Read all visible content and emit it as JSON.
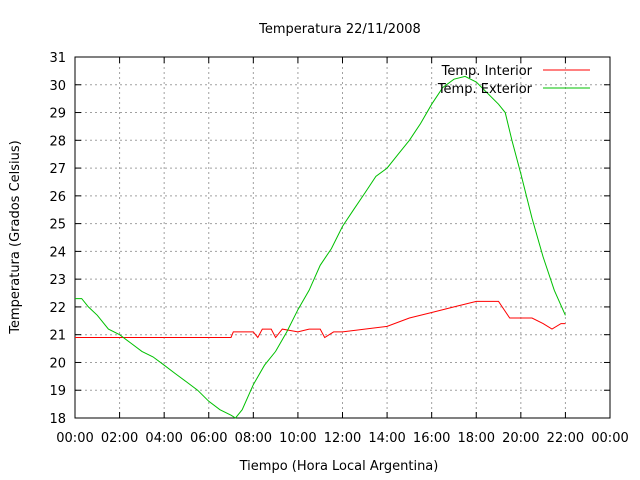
{
  "chart_data": {
    "type": "line",
    "title": "Temperatura 22/11/2008",
    "xlabel": "Tiempo (Hora Local Argentina)",
    "ylabel": "Temperatura (Grados Celsius)",
    "xlim": [
      0,
      24
    ],
    "ylim": [
      18,
      31
    ],
    "x_unit": "hours",
    "xticks": [
      "00:00",
      "02:00",
      "04:00",
      "06:00",
      "08:00",
      "10:00",
      "12:00",
      "14:00",
      "16:00",
      "18:00",
      "20:00",
      "22:00",
      "00:00"
    ],
    "yticks": [
      "18",
      "19",
      "20",
      "21",
      "22",
      "23",
      "24",
      "25",
      "26",
      "27",
      "28",
      "29",
      "30",
      "31"
    ],
    "grid": true,
    "legend_position": "top-right",
    "series": [
      {
        "name": "Temp. Interior",
        "color": "#ff0000",
        "points": [
          [
            0,
            20.9
          ],
          [
            7.0,
            20.9
          ],
          [
            7.1,
            21.1
          ],
          [
            8.0,
            21.1
          ],
          [
            8.2,
            20.9
          ],
          [
            8.4,
            21.2
          ],
          [
            8.8,
            21.2
          ],
          [
            9.0,
            20.9
          ],
          [
            9.3,
            21.2
          ],
          [
            10.0,
            21.1
          ],
          [
            10.5,
            21.2
          ],
          [
            11.0,
            21.2
          ],
          [
            11.2,
            20.9
          ],
          [
            11.6,
            21.1
          ],
          [
            12.0,
            21.1
          ],
          [
            13.0,
            21.2
          ],
          [
            14.0,
            21.3
          ],
          [
            15.0,
            21.6
          ],
          [
            16.0,
            21.8
          ],
          [
            17.0,
            22.0
          ],
          [
            18.0,
            22.2
          ],
          [
            19.0,
            22.2
          ],
          [
            19.5,
            21.6
          ],
          [
            20.5,
            21.6
          ],
          [
            21.0,
            21.4
          ],
          [
            21.4,
            21.2
          ],
          [
            21.8,
            21.4
          ],
          [
            22.0,
            21.4
          ]
        ]
      },
      {
        "name": "Temp. Exterior",
        "color": "#00c000",
        "points": [
          [
            0,
            22.3
          ],
          [
            0.3,
            22.3
          ],
          [
            0.6,
            22.0
          ],
          [
            1.0,
            21.7
          ],
          [
            1.5,
            21.2
          ],
          [
            2.0,
            21.0
          ],
          [
            2.5,
            20.7
          ],
          [
            3.0,
            20.4
          ],
          [
            3.5,
            20.2
          ],
          [
            4.0,
            19.9
          ],
          [
            4.5,
            19.6
          ],
          [
            5.0,
            19.3
          ],
          [
            5.5,
            19.0
          ],
          [
            6.0,
            18.6
          ],
          [
            6.5,
            18.3
          ],
          [
            7.0,
            18.1
          ],
          [
            7.2,
            18.0
          ],
          [
            7.5,
            18.3
          ],
          [
            8.0,
            19.2
          ],
          [
            8.5,
            19.9
          ],
          [
            9.0,
            20.4
          ],
          [
            9.5,
            21.1
          ],
          [
            10.0,
            21.9
          ],
          [
            10.5,
            22.6
          ],
          [
            11.0,
            23.5
          ],
          [
            11.5,
            24.1
          ],
          [
            12.0,
            24.9
          ],
          [
            12.5,
            25.5
          ],
          [
            13.0,
            26.1
          ],
          [
            13.5,
            26.7
          ],
          [
            14.0,
            27.0
          ],
          [
            14.5,
            27.5
          ],
          [
            15.0,
            28.0
          ],
          [
            15.5,
            28.6
          ],
          [
            16.0,
            29.3
          ],
          [
            16.5,
            29.9
          ],
          [
            17.0,
            30.2
          ],
          [
            17.5,
            30.3
          ],
          [
            18.0,
            30.1
          ],
          [
            18.5,
            29.7
          ],
          [
            19.0,
            29.3
          ],
          [
            19.3,
            29.0
          ],
          [
            19.6,
            28.0
          ],
          [
            20.0,
            26.8
          ],
          [
            20.5,
            25.2
          ],
          [
            21.0,
            23.8
          ],
          [
            21.5,
            22.6
          ],
          [
            22.0,
            21.7
          ]
        ]
      }
    ]
  }
}
